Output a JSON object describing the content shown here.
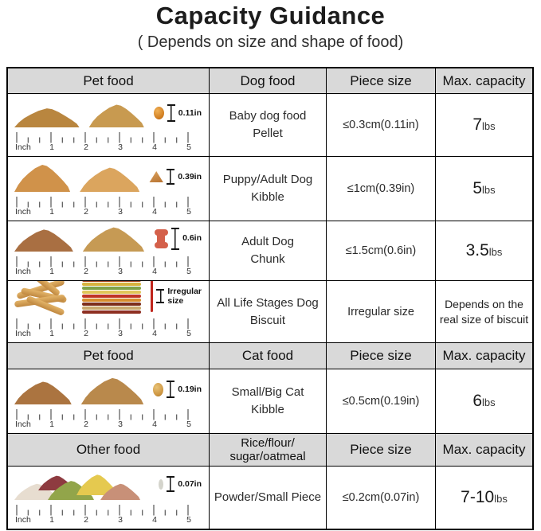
{
  "title": "Capacity Guidance",
  "subtitle": "( Depends on size and shape of food)",
  "colors": {
    "header_bg": "#d9d9d9",
    "border": "#000000",
    "measure_marker": "#151515",
    "irregular_stick_red": "#c0251c"
  },
  "ruler": {
    "unit": "Inch",
    "numbers": [
      "1",
      "2",
      "3",
      "4",
      "5"
    ]
  },
  "sections": [
    {
      "header": {
        "c1": "Pet food",
        "c2_l1": "Dog food",
        "c2_l2": "",
        "c3": "Piece size",
        "c4": "Max. capacity"
      },
      "rows": [
        {
          "measure_l1": "0.11in",
          "measure_l2": "",
          "name_l1": "Baby dog food",
          "name_l2": "Pellet",
          "size": "≤0.3cm(0.11in)",
          "cap_big": "7",
          "cap_unit": "lbs",
          "cap_l1": "",
          "cap_l2": ""
        },
        {
          "measure_l1": "0.39in",
          "measure_l2": "",
          "name_l1": "Puppy/Adult Dog",
          "name_l2": "Kibble",
          "size": "≤1cm(0.39in)",
          "cap_big": "5",
          "cap_unit": "lbs",
          "cap_l1": "",
          "cap_l2": ""
        },
        {
          "measure_l1": "0.6in",
          "measure_l2": "",
          "name_l1": "Adult Dog",
          "name_l2": "Chunk",
          "size": "≤1.5cm(0.6in)",
          "cap_big": "3.5",
          "cap_unit": "lbs",
          "cap_l1": "",
          "cap_l2": ""
        },
        {
          "measure_l1": "Irregular",
          "measure_l2": "size",
          "name_l1": "All Life Stages Dog",
          "name_l2": "Biscuit",
          "size": "Irregular size",
          "cap_big": "",
          "cap_unit": "",
          "cap_l1": "Depends on the",
          "cap_l2": "real size of biscuit"
        }
      ]
    },
    {
      "header": {
        "c1": "Pet food",
        "c2_l1": "Cat food",
        "c2_l2": "",
        "c3": "Piece size",
        "c4": "Max. capacity"
      },
      "rows": [
        {
          "measure_l1": "0.19in",
          "measure_l2": "",
          "name_l1": "Small/Big Cat",
          "name_l2": "Kibble",
          "size": "≤0.5cm(0.19in)",
          "cap_big": "6",
          "cap_unit": "lbs",
          "cap_l1": "",
          "cap_l2": ""
        }
      ]
    },
    {
      "header": {
        "c1": "Other food",
        "c2_l1": "Rice/flour/",
        "c2_l2": "sugar/oatmeal",
        "c3": "Piece size",
        "c4": "Max. capacity"
      },
      "rows": [
        {
          "measure_l1": "0.07in",
          "measure_l2": "",
          "name_l1": "Powder/Small Piece",
          "name_l2": "",
          "size": "≤0.2cm(0.07in)",
          "cap_big": "7-10",
          "cap_unit": "lbs",
          "cap_l1": "",
          "cap_l2": ""
        }
      ]
    }
  ]
}
